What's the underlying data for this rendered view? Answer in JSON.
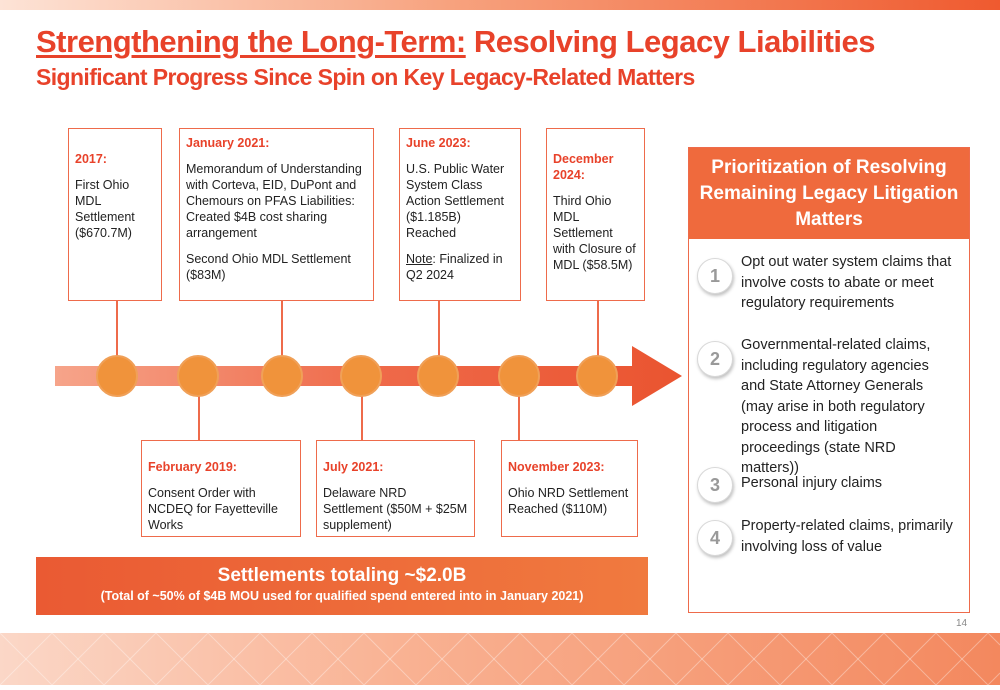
{
  "title": {
    "underlined": "Strengthening the Long-Term:",
    "rest": " Resolving Legacy Liabilities"
  },
  "subtitle": "Significant Progress Since Spin on Key Legacy-Related Matters",
  "events_top": [
    {
      "date": "2017:",
      "body": [
        "First Ohio MDL Settlement ($670.7M)"
      ]
    },
    {
      "date": "January 2021:",
      "body": [
        "Memorandum of Understanding with Corteva, EID, DuPont and Chemours on PFAS Liabilities: Created $4B cost sharing arrangement",
        "Second Ohio MDL Settlement ($83M)"
      ]
    },
    {
      "date": "June 2023:",
      "body": [
        "U.S. Public Water System Class Action Settlement ($1.185B) Reached"
      ],
      "note_label": "Note",
      "note_rest": ": Finalized in Q2 2024"
    },
    {
      "date": "December 2024:",
      "body": [
        "Third Ohio MDL Settlement with Closure of MDL ($58.5M)"
      ]
    }
  ],
  "events_bottom": [
    {
      "date": "February 2019:",
      "body": [
        "Consent Order with NCDEQ for Fayetteville Works"
      ]
    },
    {
      "date": "July 2021:",
      "body": [
        "Delaware NRD Settlement ($50M + $25M supplement)"
      ]
    },
    {
      "date": "November 2023:",
      "body": [
        "Ohio NRD Settlement Reached ($110M)"
      ]
    }
  ],
  "settlements": {
    "headline": "Settlements totaling ~$2.0B",
    "detail": "(Total of ~50% of $4B MOU used for qualified spend entered into in January 2021)"
  },
  "priorities": {
    "heading": "Prioritization of Resolving Remaining Legacy Litigation Matters",
    "items": [
      {
        "num": "1",
        "text": "Opt out water system claims that involve costs to abate or meet regulatory requirements"
      },
      {
        "num": "2",
        "text": "Governmental-related claims, including regulatory agencies and State Attorney Generals (may arise in both regulatory process and litigation proceedings (state NRD matters))"
      },
      {
        "num": "3",
        "text": "Personal injury claims"
      },
      {
        "num": "4",
        "text": "Property-related claims, primarily involving loss of value"
      }
    ]
  },
  "page_number": "14",
  "colors": {
    "accent": "#e8422a",
    "arrow": "#ef6a4a",
    "dot": "#f0933b",
    "panel_head": "#ef6a3d"
  }
}
